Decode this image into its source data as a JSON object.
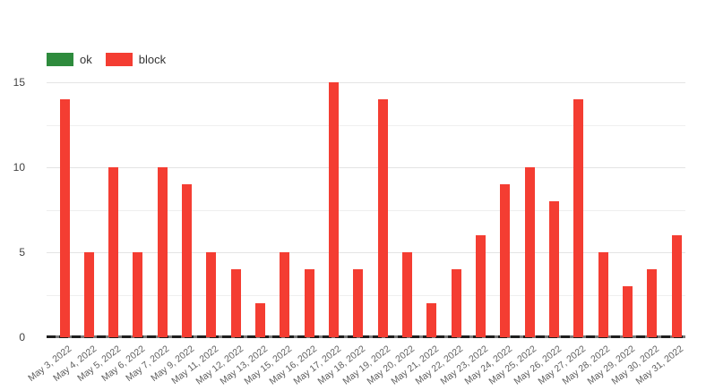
{
  "chart_data": {
    "type": "bar",
    "title": "",
    "xlabel": "",
    "ylabel": "",
    "categories": [
      "May 3, 2022",
      "May 4, 2022",
      "May 5, 2022",
      "May 6, 2022",
      "May 7, 2022",
      "May 9, 2022",
      "May 11, 2022",
      "May 12, 2022",
      "May 13, 2022",
      "May 15, 2022",
      "May 16, 2022",
      "May 17, 2022",
      "May 18, 2022",
      "May 19, 2022",
      "May 20, 2022",
      "May 21, 2022",
      "May 22, 2022",
      "May 23, 2022",
      "May 24, 2022",
      "May 25, 2022",
      "May 26, 2022",
      "May 27, 2022",
      "May 28, 2022",
      "May 29, 2022",
      "May 30, 2022",
      "May 31, 2022"
    ],
    "series": [
      {
        "name": "ok",
        "color": "#2e8b3d",
        "values": [
          0,
          0,
          0,
          0,
          0,
          0,
          0,
          0,
          0,
          0,
          0,
          0,
          0,
          0,
          0,
          0,
          0,
          0,
          0,
          0,
          0,
          0,
          0,
          0,
          0,
          0
        ]
      },
      {
        "name": "block",
        "color": "#f43d32",
        "values": [
          14,
          5,
          10,
          5,
          10,
          9,
          5,
          4,
          2,
          5,
          4,
          15,
          4,
          14,
          5,
          2,
          4,
          6,
          9,
          10,
          8,
          14,
          5,
          3,
          4,
          6
        ]
      }
    ],
    "ylim": [
      0,
      15
    ],
    "yticks": [
      0,
      5,
      10,
      15
    ],
    "minor_gridlines": [
      2.5,
      7.5,
      12.5
    ],
    "legend_position": "top-left",
    "grid": true
  },
  "colors": {
    "background": "#ffffff",
    "gridline": "#e4e4e4",
    "minor_gridline": "#efefef",
    "axis_text": "#424242",
    "x_label_text": "#5f5f5f",
    "legend_text": "#333333",
    "baseline": "#1e1e1e"
  }
}
